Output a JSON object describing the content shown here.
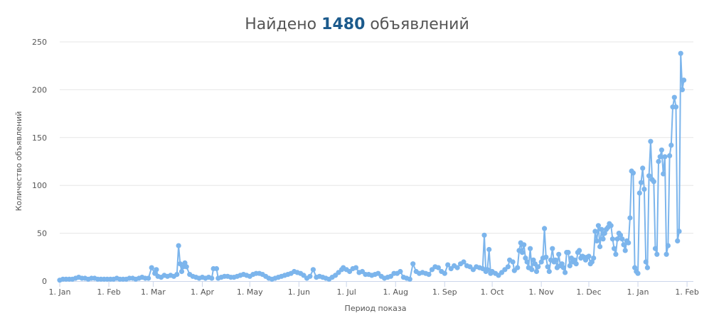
{
  "title": {
    "prefix": "Найдено",
    "count": "1480",
    "suffix": "объявлений"
  },
  "colors": {
    "series": "#7cb5ec",
    "grid": "#e6e6e6",
    "axis": "#ccd6eb",
    "title_count": "#1b5a8c"
  },
  "chart_data": {
    "type": "line",
    "title": "Найдено 1480 объявлений",
    "xlabel": "Период показа",
    "ylabel": "Количество объявлений",
    "ylim": [
      0,
      250
    ],
    "yticks": [
      0,
      50,
      100,
      150,
      200,
      250
    ],
    "xlim": [
      1,
      401
    ],
    "xticks": [
      {
        "day": 1,
        "label": "1. Jan"
      },
      {
        "day": 32,
        "label": "1. Feb"
      },
      {
        "day": 60,
        "label": "1. Mar"
      },
      {
        "day": 91,
        "label": "1. Apr"
      },
      {
        "day": 121,
        "label": "1. May"
      },
      {
        "day": 152,
        "label": "1. Jun"
      },
      {
        "day": 182,
        "label": "1. Jul"
      },
      {
        "day": 213,
        "label": "1. Aug"
      },
      {
        "day": 244,
        "label": "1. Sep"
      },
      {
        "day": 274,
        "label": "1. Oct"
      },
      {
        "day": 305,
        "label": "1. Nov"
      },
      {
        "day": 335,
        "label": "1. Dec"
      },
      {
        "day": 366,
        "label": "1. Jan"
      },
      {
        "day": 397,
        "label": "1. Feb"
      }
    ],
    "grid": true,
    "legend": "none",
    "series": [
      {
        "name": "",
        "points": [
          [
            1,
            1
          ],
          [
            3,
            2
          ],
          [
            5,
            2
          ],
          [
            7,
            2
          ],
          [
            9,
            2
          ],
          [
            11,
            3
          ],
          [
            13,
            4
          ],
          [
            15,
            3
          ],
          [
            17,
            3
          ],
          [
            19,
            2
          ],
          [
            21,
            3
          ],
          [
            23,
            3
          ],
          [
            25,
            2
          ],
          [
            27,
            2
          ],
          [
            29,
            2
          ],
          [
            31,
            2
          ],
          [
            33,
            2
          ],
          [
            35,
            2
          ],
          [
            37,
            3
          ],
          [
            39,
            2
          ],
          [
            41,
            2
          ],
          [
            43,
            2
          ],
          [
            45,
            3
          ],
          [
            47,
            3
          ],
          [
            49,
            2
          ],
          [
            51,
            3
          ],
          [
            53,
            4
          ],
          [
            55,
            3
          ],
          [
            57,
            3
          ],
          [
            59,
            14
          ],
          [
            61,
            8
          ],
          [
            62,
            12
          ],
          [
            63,
            5
          ],
          [
            65,
            4
          ],
          [
            67,
            6
          ],
          [
            69,
            5
          ],
          [
            71,
            6
          ],
          [
            73,
            5
          ],
          [
            75,
            7
          ],
          [
            76,
            37
          ],
          [
            77,
            18
          ],
          [
            78,
            10
          ],
          [
            79,
            15
          ],
          [
            80,
            19
          ],
          [
            81,
            15
          ],
          [
            83,
            7
          ],
          [
            85,
            5
          ],
          [
            87,
            4
          ],
          [
            89,
            3
          ],
          [
            91,
            4
          ],
          [
            93,
            3
          ],
          [
            95,
            4
          ],
          [
            97,
            3
          ],
          [
            98,
            13
          ],
          [
            100,
            13
          ],
          [
            101,
            3
          ],
          [
            103,
            4
          ],
          [
            105,
            5
          ],
          [
            107,
            5
          ],
          [
            109,
            4
          ],
          [
            111,
            4
          ],
          [
            113,
            5
          ],
          [
            115,
            6
          ],
          [
            117,
            7
          ],
          [
            119,
            6
          ],
          [
            121,
            5
          ],
          [
            123,
            7
          ],
          [
            125,
            8
          ],
          [
            127,
            8
          ],
          [
            129,
            7
          ],
          [
            131,
            5
          ],
          [
            133,
            3
          ],
          [
            135,
            2
          ],
          [
            137,
            3
          ],
          [
            139,
            4
          ],
          [
            141,
            5
          ],
          [
            143,
            6
          ],
          [
            145,
            7
          ],
          [
            147,
            8
          ],
          [
            149,
            10
          ],
          [
            151,
            9
          ],
          [
            153,
            8
          ],
          [
            155,
            6
          ],
          [
            157,
            3
          ],
          [
            159,
            5
          ],
          [
            161,
            12
          ],
          [
            163,
            4
          ],
          [
            165,
            5
          ],
          [
            167,
            4
          ],
          [
            169,
            3
          ],
          [
            171,
            2
          ],
          [
            173,
            4
          ],
          [
            175,
            6
          ],
          [
            177,
            9
          ],
          [
            179,
            12
          ],
          [
            180,
            14
          ],
          [
            182,
            12
          ],
          [
            184,
            10
          ],
          [
            186,
            13
          ],
          [
            188,
            14
          ],
          [
            190,
            9
          ],
          [
            192,
            10
          ],
          [
            194,
            7
          ],
          [
            196,
            7
          ],
          [
            198,
            6
          ],
          [
            200,
            7
          ],
          [
            202,
            8
          ],
          [
            204,
            5
          ],
          [
            206,
            3
          ],
          [
            208,
            4
          ],
          [
            210,
            5
          ],
          [
            212,
            8
          ],
          [
            214,
            8
          ],
          [
            216,
            10
          ],
          [
            218,
            4
          ],
          [
            220,
            3
          ],
          [
            222,
            2
          ],
          [
            224,
            18
          ],
          [
            226,
            10
          ],
          [
            228,
            8
          ],
          [
            230,
            9
          ],
          [
            232,
            8
          ],
          [
            234,
            7
          ],
          [
            236,
            12
          ],
          [
            238,
            15
          ],
          [
            240,
            14
          ],
          [
            242,
            10
          ],
          [
            244,
            8
          ],
          [
            246,
            17
          ],
          [
            248,
            13
          ],
          [
            250,
            16
          ],
          [
            252,
            14
          ],
          [
            254,
            18
          ],
          [
            256,
            20
          ],
          [
            258,
            16
          ],
          [
            260,
            15
          ],
          [
            262,
            12
          ],
          [
            264,
            15
          ],
          [
            266,
            14
          ],
          [
            268,
            13
          ],
          [
            269,
            48
          ],
          [
            270,
            10
          ],
          [
            271,
            12
          ],
          [
            272,
            33
          ],
          [
            273,
            8
          ],
          [
            274,
            10
          ],
          [
            276,
            8
          ],
          [
            278,
            6
          ],
          [
            280,
            9
          ],
          [
            282,
            12
          ],
          [
            284,
            15
          ],
          [
            285,
            22
          ],
          [
            287,
            20
          ],
          [
            288,
            11
          ],
          [
            290,
            14
          ],
          [
            291,
            32
          ],
          [
            292,
            40
          ],
          [
            293,
            30
          ],
          [
            294,
            38
          ],
          [
            295,
            24
          ],
          [
            296,
            20
          ],
          [
            297,
            14
          ],
          [
            298,
            34
          ],
          [
            299,
            12
          ],
          [
            300,
            22
          ],
          [
            301,
            18
          ],
          [
            302,
            10
          ],
          [
            303,
            15
          ],
          [
            305,
            20
          ],
          [
            306,
            24
          ],
          [
            307,
            55
          ],
          [
            308,
            25
          ],
          [
            309,
            15
          ],
          [
            310,
            10
          ],
          [
            311,
            22
          ],
          [
            312,
            34
          ],
          [
            313,
            20
          ],
          [
            314,
            22
          ],
          [
            315,
            14
          ],
          [
            316,
            28
          ],
          [
            317,
            16
          ],
          [
            318,
            18
          ],
          [
            319,
            14
          ],
          [
            320,
            9
          ],
          [
            321,
            30
          ],
          [
            322,
            30
          ],
          [
            323,
            16
          ],
          [
            324,
            24
          ],
          [
            325,
            20
          ],
          [
            326,
            22
          ],
          [
            327,
            18
          ],
          [
            328,
            30
          ],
          [
            329,
            32
          ],
          [
            330,
            24
          ],
          [
            331,
            26
          ],
          [
            332,
            25
          ],
          [
            333,
            22
          ],
          [
            334,
            25
          ],
          [
            335,
            26
          ],
          [
            336,
            18
          ],
          [
            337,
            20
          ],
          [
            338,
            24
          ],
          [
            339,
            52
          ],
          [
            340,
            42
          ],
          [
            341,
            58
          ],
          [
            342,
            36
          ],
          [
            343,
            54
          ],
          [
            344,
            44
          ],
          [
            345,
            50
          ],
          [
            346,
            54
          ],
          [
            347,
            56
          ],
          [
            348,
            60
          ],
          [
            349,
            58
          ],
          [
            350,
            44
          ],
          [
            351,
            34
          ],
          [
            352,
            28
          ],
          [
            353,
            44
          ],
          [
            354,
            50
          ],
          [
            355,
            48
          ],
          [
            356,
            44
          ],
          [
            357,
            38
          ],
          [
            358,
            32
          ],
          [
            359,
            42
          ],
          [
            360,
            40
          ],
          [
            361,
            66
          ],
          [
            362,
            115
          ],
          [
            363,
            113
          ],
          [
            364,
            14
          ],
          [
            365,
            10
          ],
          [
            366,
            8
          ],
          [
            367,
            92
          ],
          [
            368,
            103
          ],
          [
            369,
            118
          ],
          [
            370,
            96
          ],
          [
            371,
            20
          ],
          [
            372,
            14
          ],
          [
            373,
            110
          ],
          [
            374,
            146
          ],
          [
            375,
            106
          ],
          [
            376,
            104
          ],
          [
            377,
            34
          ],
          [
            378,
            28
          ],
          [
            379,
            125
          ],
          [
            380,
            130
          ],
          [
            381,
            137
          ],
          [
            382,
            112
          ],
          [
            383,
            130
          ],
          [
            384,
            28
          ],
          [
            385,
            37
          ],
          [
            386,
            131
          ],
          [
            387,
            142
          ],
          [
            388,
            182
          ],
          [
            389,
            192
          ],
          [
            390,
            182
          ],
          [
            391,
            42
          ],
          [
            392,
            52
          ],
          [
            393,
            238
          ],
          [
            394,
            200
          ],
          [
            395,
            210
          ]
        ]
      }
    ]
  }
}
